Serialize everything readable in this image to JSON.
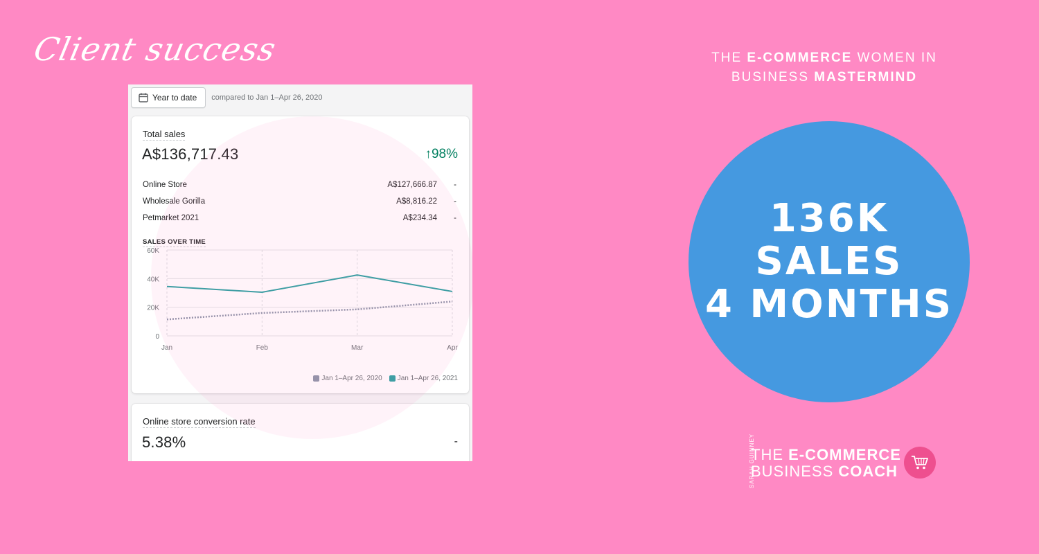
{
  "header": {
    "script_title": "Client success",
    "mastermind_line1_pre": "THE ",
    "mastermind_line1_bold": "E-COMMERCE",
    "mastermind_line1_post": " WOMEN IN",
    "mastermind_line2_pre": "BUSINESS ",
    "mastermind_line2_bold": "MASTERMIND"
  },
  "circle": {
    "line1": "136K",
    "line2": "SALES",
    "line3": "4 MONTHS",
    "color": "#4599e0"
  },
  "brand": {
    "vertical_name": "SARAH GUINNEY",
    "line1_pre": "THE ",
    "line1_bold": "E-COMMERCE",
    "line2_pre": "BUSINESS ",
    "line2_bold": "COACH",
    "icon": "shopping-cart-icon"
  },
  "dashboard": {
    "date_button": "Year to date",
    "date_icon": "calendar-icon",
    "compare_text": "compared to Jan 1–Apr 26, 2020",
    "total_sales_title": "Total sales",
    "total_sales_value": "A$136,717.43",
    "change_pct": "↑98%",
    "channels": [
      {
        "label": "Online Store",
        "amount": "A$127,666.87",
        "change": "-"
      },
      {
        "label": "Wholesale Gorilla",
        "amount": "A$8,816.22",
        "change": "-"
      },
      {
        "label": "Petmarket 2021",
        "amount": "A$234.34",
        "change": "-"
      }
    ],
    "sales_over_time_title": "SALES OVER TIME",
    "conversion_title": "Online store conversion rate",
    "conversion_value": "5.38%",
    "conversion_change": "-"
  },
  "chart_data": {
    "type": "line",
    "title": "SALES OVER TIME",
    "x": [
      "Jan",
      "Feb",
      "Mar",
      "Apr"
    ],
    "y_ticks": [
      "60K",
      "40K",
      "20K",
      "0"
    ],
    "ylim": [
      0,
      60000
    ],
    "grid": true,
    "legend_position": "bottom-right",
    "series": [
      {
        "name": "Jan 1–Apr 26, 2020",
        "values": [
          11500,
          16000,
          18500,
          24000
        ],
        "color": "#8c93a8",
        "style": "dotted"
      },
      {
        "name": "Jan 1–Apr 26, 2021",
        "values": [
          34500,
          30500,
          42500,
          31000
        ],
        "color": "#2aa1a1",
        "style": "solid"
      }
    ]
  }
}
